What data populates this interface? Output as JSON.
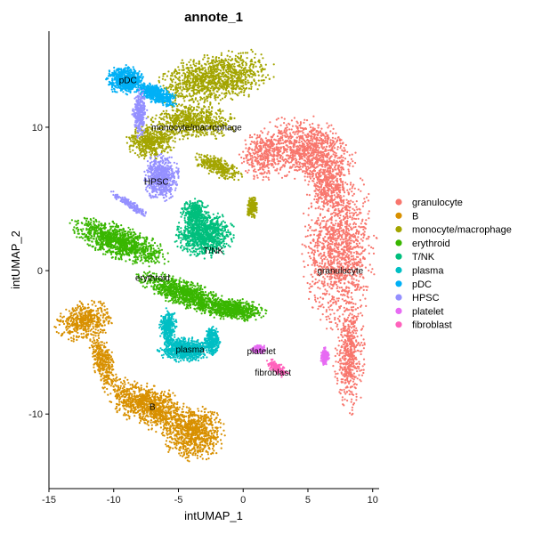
{
  "chart_data": {
    "type": "scatter",
    "title": "annote_1",
    "xlabel": "intUMAP_1",
    "ylabel": "intUMAP_2",
    "xlim": [
      -15,
      10.5
    ],
    "ylim": [
      -15.2,
      16.7
    ],
    "xticks": [
      -15,
      -10,
      -5,
      0,
      5,
      10
    ],
    "yticks": [
      -10,
      0,
      10
    ],
    "grid": false,
    "legend_position": "right",
    "series": [
      {
        "name": "granulocyte",
        "color": "#F8766D",
        "label_pos": [
          7.5,
          0
        ],
        "regions": [
          {
            "cx": 5.0,
            "cy": 8.4,
            "rx": 3.4,
            "ry": 2.1,
            "rot": -15,
            "w": 6
          },
          {
            "cx": 7.4,
            "cy": 1.6,
            "rx": 2.6,
            "ry": 5.4,
            "rot": 0,
            "w": 8
          },
          {
            "cx": 8.2,
            "cy": -6.0,
            "rx": 1.1,
            "ry": 3.6,
            "rot": 0,
            "w": 3
          },
          {
            "cx": 6.6,
            "cy": 6.0,
            "rx": 1.6,
            "ry": 1.6,
            "rot": 0,
            "w": 2
          },
          {
            "cx": 1.5,
            "cy": 8.0,
            "rx": 1.6,
            "ry": 1.6,
            "rot": 0,
            "w": 2
          }
        ]
      },
      {
        "name": "B",
        "color": "#D89000",
        "label_pos": [
          -7,
          -9.5
        ],
        "regions": [
          {
            "cx": -12.2,
            "cy": -3.5,
            "rx": 2.1,
            "ry": 1.3,
            "rot": 15,
            "w": 3
          },
          {
            "cx": -10.8,
            "cy": -6.4,
            "rx": 0.8,
            "ry": 2.0,
            "rot": 20,
            "w": 2
          },
          {
            "cx": -7.3,
            "cy": -9.4,
            "rx": 3.3,
            "ry": 1.4,
            "rot": -20,
            "w": 6
          },
          {
            "cx": -3.9,
            "cy": -11.3,
            "rx": 2.3,
            "ry": 1.8,
            "rot": 0,
            "w": 5
          }
        ]
      },
      {
        "name": "monocyte/macrophage",
        "color": "#A3A500",
        "label_pos": [
          -3.6,
          10
        ],
        "regions": [
          {
            "cx": -2.2,
            "cy": 13.4,
            "rx": 4.3,
            "ry": 1.7,
            "rot": 10,
            "w": 7
          },
          {
            "cx": -3.8,
            "cy": 10.4,
            "rx": 3.2,
            "ry": 1.2,
            "rot": 0,
            "w": 4
          },
          {
            "cx": -7.2,
            "cy": 9.0,
            "rx": 1.8,
            "ry": 1.1,
            "rot": 0,
            "w": 3
          },
          {
            "cx": -1.9,
            "cy": 7.2,
            "rx": 1.9,
            "ry": 0.6,
            "rot": -20,
            "w": 2
          },
          {
            "cx": 0.7,
            "cy": 4.4,
            "rx": 0.4,
            "ry": 0.8,
            "rot": 0,
            "w": 1
          }
        ]
      },
      {
        "name": "erythroid",
        "color": "#39B600",
        "label_pos": [
          -7,
          -0.5
        ],
        "regions": [
          {
            "cx": -9.5,
            "cy": 2.0,
            "rx": 3.6,
            "ry": 1.1,
            "rot": -18,
            "w": 7
          },
          {
            "cx": -4.5,
            "cy": -1.6,
            "rx": 3.5,
            "ry": 0.9,
            "rot": -18,
            "w": 6
          },
          {
            "cx": -0.8,
            "cy": -2.7,
            "rx": 2.4,
            "ry": 0.7,
            "rot": -5,
            "w": 4
          }
        ]
      },
      {
        "name": "T/NK",
        "color": "#00BF7D",
        "label_pos": [
          -2.3,
          1.4
        ],
        "regions": [
          {
            "cx": -3.0,
            "cy": 2.5,
            "rx": 2.1,
            "ry": 1.5,
            "rot": 0,
            "w": 6
          },
          {
            "cx": -3.7,
            "cy": 4.0,
            "rx": 1.0,
            "ry": 0.9,
            "rot": 0,
            "w": 2
          }
        ]
      },
      {
        "name": "plasma",
        "color": "#00BFC4",
        "label_pos": [
          -4.1,
          -5.5
        ],
        "regions": [
          {
            "cx": -5.8,
            "cy": -3.9,
            "rx": 0.6,
            "ry": 1.2,
            "rot": 0,
            "w": 2
          },
          {
            "cx": -4.5,
            "cy": -5.5,
            "rx": 1.9,
            "ry": 0.8,
            "rot": 0,
            "w": 5
          },
          {
            "cx": -2.4,
            "cy": -4.9,
            "rx": 0.6,
            "ry": 0.9,
            "rot": 0,
            "w": 2
          }
        ]
      },
      {
        "name": "pDC",
        "color": "#00B0F6",
        "label_pos": [
          -8.9,
          13.3
        ],
        "regions": [
          {
            "cx": -9.1,
            "cy": 13.3,
            "rx": 1.4,
            "ry": 0.9,
            "rot": 0,
            "w": 4
          },
          {
            "cx": -6.7,
            "cy": 12.3,
            "rx": 1.6,
            "ry": 0.6,
            "rot": -20,
            "w": 3
          }
        ]
      },
      {
        "name": "HPSC",
        "color": "#9590FF",
        "label_pos": [
          -6.7,
          6.2
        ],
        "regions": [
          {
            "cx": -6.3,
            "cy": 6.5,
            "rx": 1.3,
            "ry": 1.5,
            "rot": 0,
            "w": 4
          },
          {
            "cx": -8.0,
            "cy": 11.0,
            "rx": 0.5,
            "ry": 1.6,
            "rot": 0,
            "w": 2
          },
          {
            "cx": -8.7,
            "cy": 4.6,
            "rx": 1.7,
            "ry": 0.25,
            "rot": -30,
            "w": 1
          }
        ]
      },
      {
        "name": "platelet",
        "color": "#E76BF3",
        "label_pos": [
          1.4,
          -5.6
        ],
        "regions": [
          {
            "cx": 1.2,
            "cy": -5.5,
            "rx": 0.5,
            "ry": 0.3,
            "rot": 0,
            "w": 1
          },
          {
            "cx": 6.3,
            "cy": -6.0,
            "rx": 0.3,
            "ry": 0.6,
            "rot": 0,
            "w": 1
          }
        ]
      },
      {
        "name": "fibroblast",
        "color": "#FF62BC",
        "label_pos": [
          2.3,
          -7.1
        ],
        "regions": [
          {
            "cx": 2.6,
            "cy": -6.8,
            "rx": 0.9,
            "ry": 0.4,
            "rot": -30,
            "w": 1
          }
        ]
      }
    ]
  }
}
